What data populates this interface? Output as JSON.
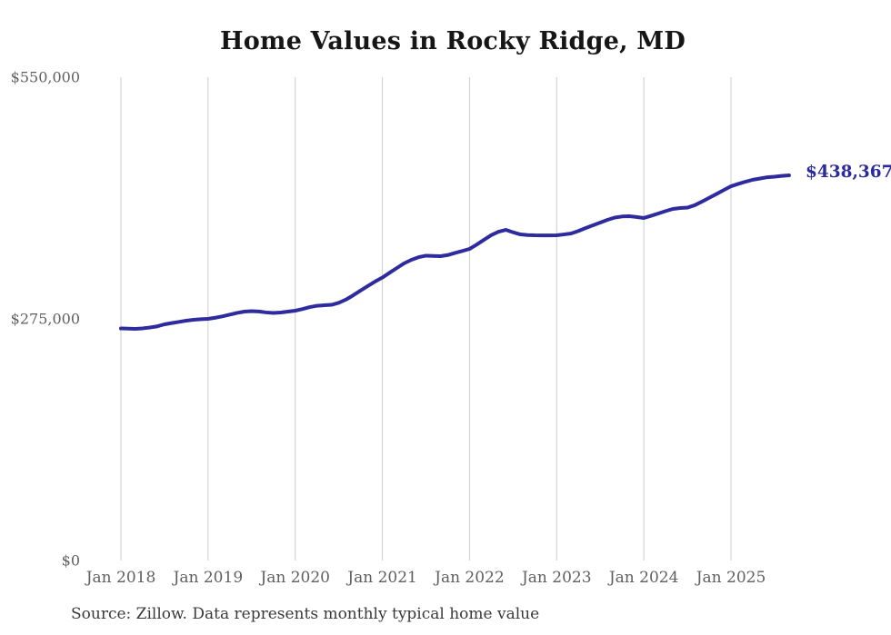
{
  "title": "Home Values in Rocky Ridge, MD",
  "source_note": "Source: Zillow. Data represents monthly typical home value",
  "end_label": "$438,367",
  "colors": {
    "line": "#2e2b9e",
    "end_label": "#2b2a9d",
    "grid": "#cccccc",
    "axis_text": "#606060",
    "title_text": "#161616",
    "source_text": "#3a3a3a",
    "background": "#ffffff"
  },
  "chart_data": {
    "type": "line",
    "title": "Home Values in Rocky Ridge, MD",
    "xlabel": "",
    "ylabel": "",
    "ylim": [
      0,
      550000
    ],
    "y_ticks": [
      0,
      275000,
      550000
    ],
    "y_tick_labels": [
      "$0",
      "$275,000",
      "$550,000"
    ],
    "x_tick_labels": [
      "Jan 2018",
      "Jan 2019",
      "Jan 2020",
      "Jan 2021",
      "Jan 2022",
      "Jan 2023",
      "Jan 2024",
      "Jan 2025"
    ],
    "grid": "vertical-only",
    "legend": "none",
    "start_month": "2018-01",
    "end_month": "2025-09",
    "last_value": 438367,
    "series": [
      {
        "name": "Monthly typical home value",
        "monthly_values": [
          264100,
          263900,
          263600,
          264200,
          265200,
          266500,
          268800,
          270200,
          271600,
          272900,
          274000,
          274600,
          275000,
          276300,
          277900,
          279800,
          281800,
          283300,
          283800,
          283400,
          282300,
          281700,
          282200,
          283300,
          284300,
          286200,
          288400,
          289900,
          290500,
          291000,
          293300,
          297000,
          301900,
          307200,
          312400,
          317500,
          322000,
          327500,
          332900,
          338200,
          342200,
          345200,
          346900,
          346600,
          346300,
          347600,
          350000,
          352200,
          354600,
          359600,
          365000,
          370300,
          374200,
          376300,
          373500,
          371100,
          370400,
          370100,
          370000,
          370000,
          370100,
          371100,
          372200,
          375000,
          378400,
          381500,
          384600,
          387700,
          390300,
          391500,
          391800,
          390900,
          389800,
          392300,
          394900,
          397600,
          400100,
          401100,
          401600,
          404300,
          408400,
          412800,
          417100,
          421500,
          425900,
          428600,
          431100,
          433300,
          434700,
          436200,
          436800,
          437700,
          438367
        ]
      }
    ]
  }
}
